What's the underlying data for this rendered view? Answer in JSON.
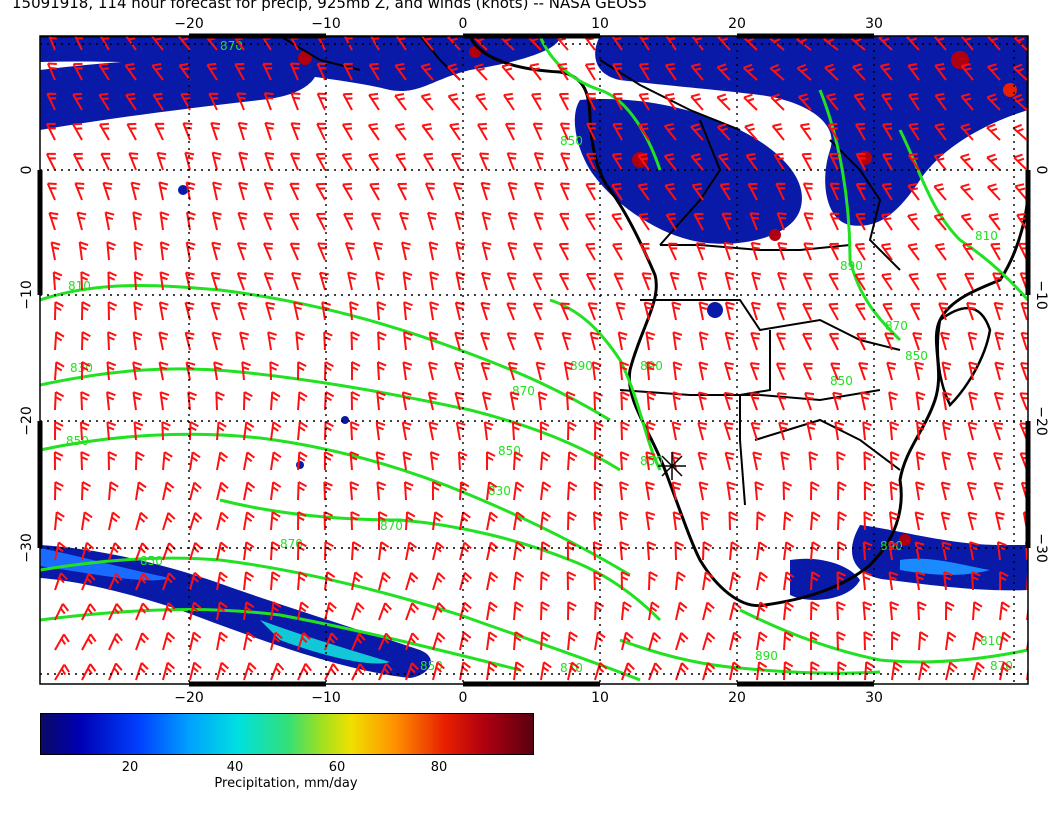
{
  "title": "15091918, 114 hour forecast for precip, 925mb Z, and winds (knots) -- NASA GEOS5",
  "map": {
    "lon_range": [
      -31,
      41
    ],
    "lat_range": [
      9,
      -40
    ],
    "top_lon_labels": [
      "−20",
      "−10",
      "0",
      "10",
      "20",
      "30"
    ],
    "bottom_lon_labels": [
      "−20",
      "−10",
      "0",
      "10",
      "20",
      "30"
    ],
    "left_lat_labels": [
      "0",
      "−10",
      "−20",
      "−30"
    ],
    "right_lat_labels": [
      "0",
      "−10",
      "−20",
      "−30"
    ],
    "contour_labels": [
      "810",
      "830",
      "850",
      "850",
      "870",
      "890",
      "870",
      "850",
      "830",
      "810",
      "850",
      "870",
      "890",
      "870",
      "850",
      "890",
      "850",
      "810",
      "890",
      "850",
      "870",
      "850",
      "890",
      "870",
      "870"
    ],
    "colors": {
      "contour": "#22e022",
      "wind_barb": "#ff1010",
      "coast": "#000000",
      "precip_light": "#0a1aa8",
      "precip_heavy": "#8b0000"
    }
  },
  "colorbar": {
    "ticks": [
      "20",
      "40",
      "60",
      "80"
    ],
    "label": "Precipitation, mm/day"
  }
}
